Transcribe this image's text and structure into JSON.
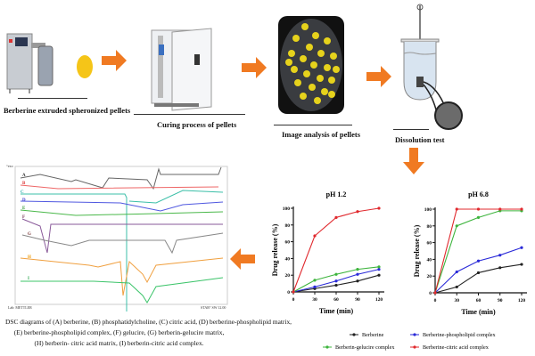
{
  "steps": [
    {
      "label": "Berberine extruded spheronized pellets"
    },
    {
      "label": "Curing process of pellets"
    },
    {
      "label": "Image analysis of pellets"
    },
    {
      "label": "Dissolution test"
    }
  ],
  "colors": {
    "arrow": "#f07a22",
    "pellet": "#f5c518",
    "berberine": "#222222",
    "phospholipid": "#2a2ad8",
    "gelucire": "#3cb43c",
    "citric": "#e0282d"
  },
  "dsc": {
    "header": "^exo",
    "curve_labels": [
      "A",
      "B",
      "C",
      "D",
      "E",
      "F",
      "G",
      "H",
      "I"
    ],
    "footer_left": "Lab: METTLER",
    "footer_right": "STAR° SW 12.00",
    "caption": [
      "DSC diagrams of (A) berberine, (B) phosphatidylcholine, (C) citric acid, (D) berberine-phospholipid  matrix,",
      "(E) berberine-phospholipid complex, (F) gelucire, (G) berberin-gelucire matrix,",
      "(H) berberin- citric acid matrix, (I) berberin-citric acid complex."
    ]
  },
  "chart_data": [
    {
      "type": "line",
      "title": "pH 1.2",
      "xlabel": "Time (min)",
      "ylabel": "Drug release (%)",
      "x": [
        0,
        30,
        60,
        90,
        120
      ],
      "xlim": [
        0,
        120
      ],
      "ylim": [
        0,
        100
      ],
      "xticks": [
        "0",
        "30",
        "60",
        "90",
        "120"
      ],
      "yticks": [
        "0",
        "20",
        "40",
        "60",
        "80",
        "100"
      ],
      "series": [
        {
          "name": "Berberine",
          "values": [
            0,
            4,
            8,
            13,
            20
          ]
        },
        {
          "name": "Berberine-phospholipid complex",
          "values": [
            0,
            6,
            13,
            21,
            27
          ]
        },
        {
          "name": "Berberin-gelucire complex",
          "values": [
            0,
            14,
            21,
            27,
            30
          ]
        },
        {
          "name": "Berberine-citric acid complex",
          "values": [
            0,
            67,
            89,
            96,
            100
          ]
        }
      ]
    },
    {
      "type": "line",
      "title": "pH 6.8",
      "xlabel": "Time (min)",
      "ylabel": "Drug release (%)",
      "x": [
        0,
        30,
        60,
        90,
        120
      ],
      "xlim": [
        0,
        120
      ],
      "ylim": [
        0,
        100
      ],
      "xticks": [
        "0",
        "30",
        "60",
        "90",
        "120"
      ],
      "yticks": [
        "0",
        "20",
        "40",
        "60",
        "80",
        "100"
      ],
      "series": [
        {
          "name": "Berberine",
          "values": [
            0,
            7,
            24,
            30,
            34
          ]
        },
        {
          "name": "Berberine-phospholipid complex",
          "values": [
            0,
            25,
            38,
            45,
            54
          ]
        },
        {
          "name": "Berberin-gelucire complex",
          "values": [
            0,
            80,
            90,
            98,
            98
          ]
        },
        {
          "name": "Berberine-citric acid complex",
          "values": [
            0,
            100,
            100,
            100,
            100
          ]
        }
      ]
    }
  ],
  "legend": [
    {
      "name": "Berberine",
      "color": "#222222"
    },
    {
      "name": "Berberine-phospholipid complex",
      "color": "#2a2ad8"
    },
    {
      "name": "Berberin-gelucire complex",
      "color": "#3cb43c"
    },
    {
      "name": "Berberine-citric acid complex",
      "color": "#e0282d"
    }
  ]
}
